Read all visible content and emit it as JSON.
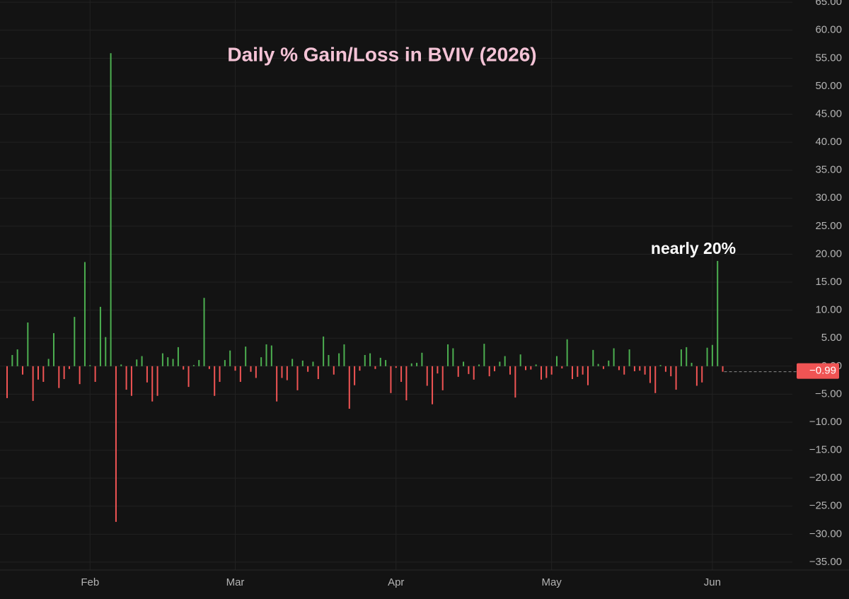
{
  "chart_data": {
    "type": "bar",
    "title": "Daily % Gain/Loss in BVIV (2026)",
    "annotation": "nearly 20%",
    "up_color": "#4caf50",
    "down_color": "#f05454",
    "grid": true,
    "ylim": [
      -36.4,
      65.4
    ],
    "yticks": [
      {
        "value": 65,
        "label": "65.00"
      },
      {
        "value": 60,
        "label": "60.00"
      },
      {
        "value": 55,
        "label": "55.00"
      },
      {
        "value": 50,
        "label": "50.00"
      },
      {
        "value": 45,
        "label": "45.00"
      },
      {
        "value": 40,
        "label": "40.00"
      },
      {
        "value": 35,
        "label": "35.00"
      },
      {
        "value": 30,
        "label": "30.00"
      },
      {
        "value": 25,
        "label": "25.00"
      },
      {
        "value": 20,
        "label": "20.00"
      },
      {
        "value": 15,
        "label": "15.00"
      },
      {
        "value": 10,
        "label": "10.00"
      },
      {
        "value": 5,
        "label": "5.00"
      },
      {
        "value": 0,
        "label": "0.00"
      },
      {
        "value": -5,
        "label": "−5.00"
      },
      {
        "value": -10,
        "label": "−10.00"
      },
      {
        "value": -15,
        "label": "−15.00"
      },
      {
        "value": -20,
        "label": "−20.00"
      },
      {
        "value": -25,
        "label": "−25.00"
      },
      {
        "value": -30,
        "label": "−30.00"
      },
      {
        "value": -35,
        "label": "−35.00"
      }
    ],
    "categories": [
      null,
      null,
      null,
      null,
      null,
      null,
      null,
      null,
      null,
      null,
      null,
      null,
      null,
      null,
      null,
      null,
      "Feb",
      null,
      null,
      null,
      null,
      null,
      null,
      null,
      null,
      null,
      null,
      null,
      null,
      null,
      null,
      null,
      null,
      null,
      null,
      null,
      null,
      null,
      null,
      null,
      null,
      null,
      null,
      null,
      "Mar",
      null,
      null,
      null,
      null,
      null,
      null,
      null,
      null,
      null,
      null,
      null,
      null,
      null,
      null,
      null,
      null,
      null,
      null,
      null,
      null,
      null,
      null,
      null,
      null,
      null,
      null,
      null,
      null,
      null,
      null,
      "Apr",
      null,
      null,
      null,
      null,
      null,
      null,
      null,
      null,
      null,
      null,
      null,
      null,
      null,
      null,
      null,
      null,
      null,
      null,
      null,
      null,
      null,
      null,
      null,
      null,
      null,
      null,
      null,
      null,
      null,
      "May",
      null,
      null,
      null,
      null,
      null,
      null,
      null,
      null,
      null,
      null,
      null,
      null,
      null,
      null,
      null,
      null,
      null,
      null,
      null,
      null,
      null,
      null,
      null,
      null,
      null,
      null,
      null,
      null,
      null,
      null,
      "Jun",
      null,
      null
    ],
    "values": [
      -5.7,
      2.0,
      3.0,
      -1.5,
      7.8,
      -6.2,
      -2.4,
      -2.8,
      1.3,
      5.9,
      -3.9,
      -2.3,
      -0.5,
      8.8,
      -3.2,
      18.6,
      0.2,
      -2.8,
      10.6,
      5.2,
      55.9,
      -27.8,
      0.3,
      -4.2,
      -5.3,
      1.2,
      1.8,
      -2.9,
      -6.3,
      -5.3,
      2.3,
      1.6,
      1.3,
      3.4,
      -0.6,
      -3.7,
      0.2,
      1.1,
      12.2,
      -0.5,
      -5.3,
      -2.8,
      1.1,
      2.8,
      -0.8,
      -2.8,
      3.5,
      -1.0,
      -2.1,
      1.6,
      3.9,
      3.7,
      -6.3,
      -2.1,
      -2.5,
      1.3,
      -4.3,
      1.0,
      -1.0,
      0.8,
      -2.3,
      5.3,
      2.0,
      -1.5,
      2.3,
      3.9,
      -7.6,
      -3.4,
      -0.8,
      2.0,
      2.3,
      -0.5,
      1.5,
      1.1,
      -4.8,
      -0.3,
      -2.8,
      -6.1,
      0.5,
      0.6,
      2.4,
      -3.5,
      -6.8,
      -1.3,
      -4.3,
      3.9,
      3.2,
      -1.9,
      0.8,
      -1.4,
      -2.4,
      0.3,
      4.0,
      -1.8,
      -0.9,
      0.8,
      1.8,
      -1.5,
      -5.6,
      2.1,
      -0.7,
      -0.6,
      0.3,
      -2.4,
      -2.1,
      -1.5,
      1.8,
      -0.4,
      4.8,
      -2.3,
      -1.9,
      -1.5,
      -3.4,
      2.9,
      0.4,
      -0.5,
      1.0,
      3.2,
      -0.7,
      -1.5,
      3.0,
      -0.9,
      -0.8,
      -1.5,
      -3.0,
      -4.8,
      0.2,
      -1.0,
      -1.8,
      -4.2,
      3.0,
      3.4,
      0.6,
      -3.5,
      -2.9,
      3.3,
      3.8,
      18.8,
      -0.99
    ],
    "value_labels": [
      null,
      null,
      null,
      null,
      null,
      null,
      null,
      null,
      null,
      null,
      null,
      null,
      null,
      null,
      null,
      null,
      null,
      null,
      null,
      null,
      null,
      null,
      null,
      null,
      null,
      null,
      null,
      null,
      null,
      null,
      null,
      null,
      null,
      null,
      null,
      null,
      null,
      null,
      null,
      null,
      null,
      null,
      null,
      null,
      null,
      null,
      null,
      null,
      null,
      null,
      null,
      null,
      null,
      null,
      null,
      null,
      null,
      null,
      null,
      null,
      null,
      null,
      null,
      null,
      null,
      null,
      null,
      null,
      null,
      null,
      null,
      null,
      null,
      null,
      null,
      null,
      null,
      null,
      null,
      null,
      null,
      null,
      null,
      null,
      null,
      null,
      null,
      null,
      null,
      null,
      null,
      null,
      null,
      null,
      null,
      null,
      null,
      null,
      null,
      null,
      null,
      null,
      null,
      null,
      null,
      null,
      null,
      null,
      null,
      null,
      null,
      null,
      null,
      null,
      null,
      null,
      null,
      null,
      null,
      null,
      null,
      null,
      null,
      null,
      null,
      null,
      null,
      null,
      null,
      null,
      null,
      null,
      null,
      null,
      null,
      null,
      null,
      null,
      "−0.99"
    ]
  }
}
